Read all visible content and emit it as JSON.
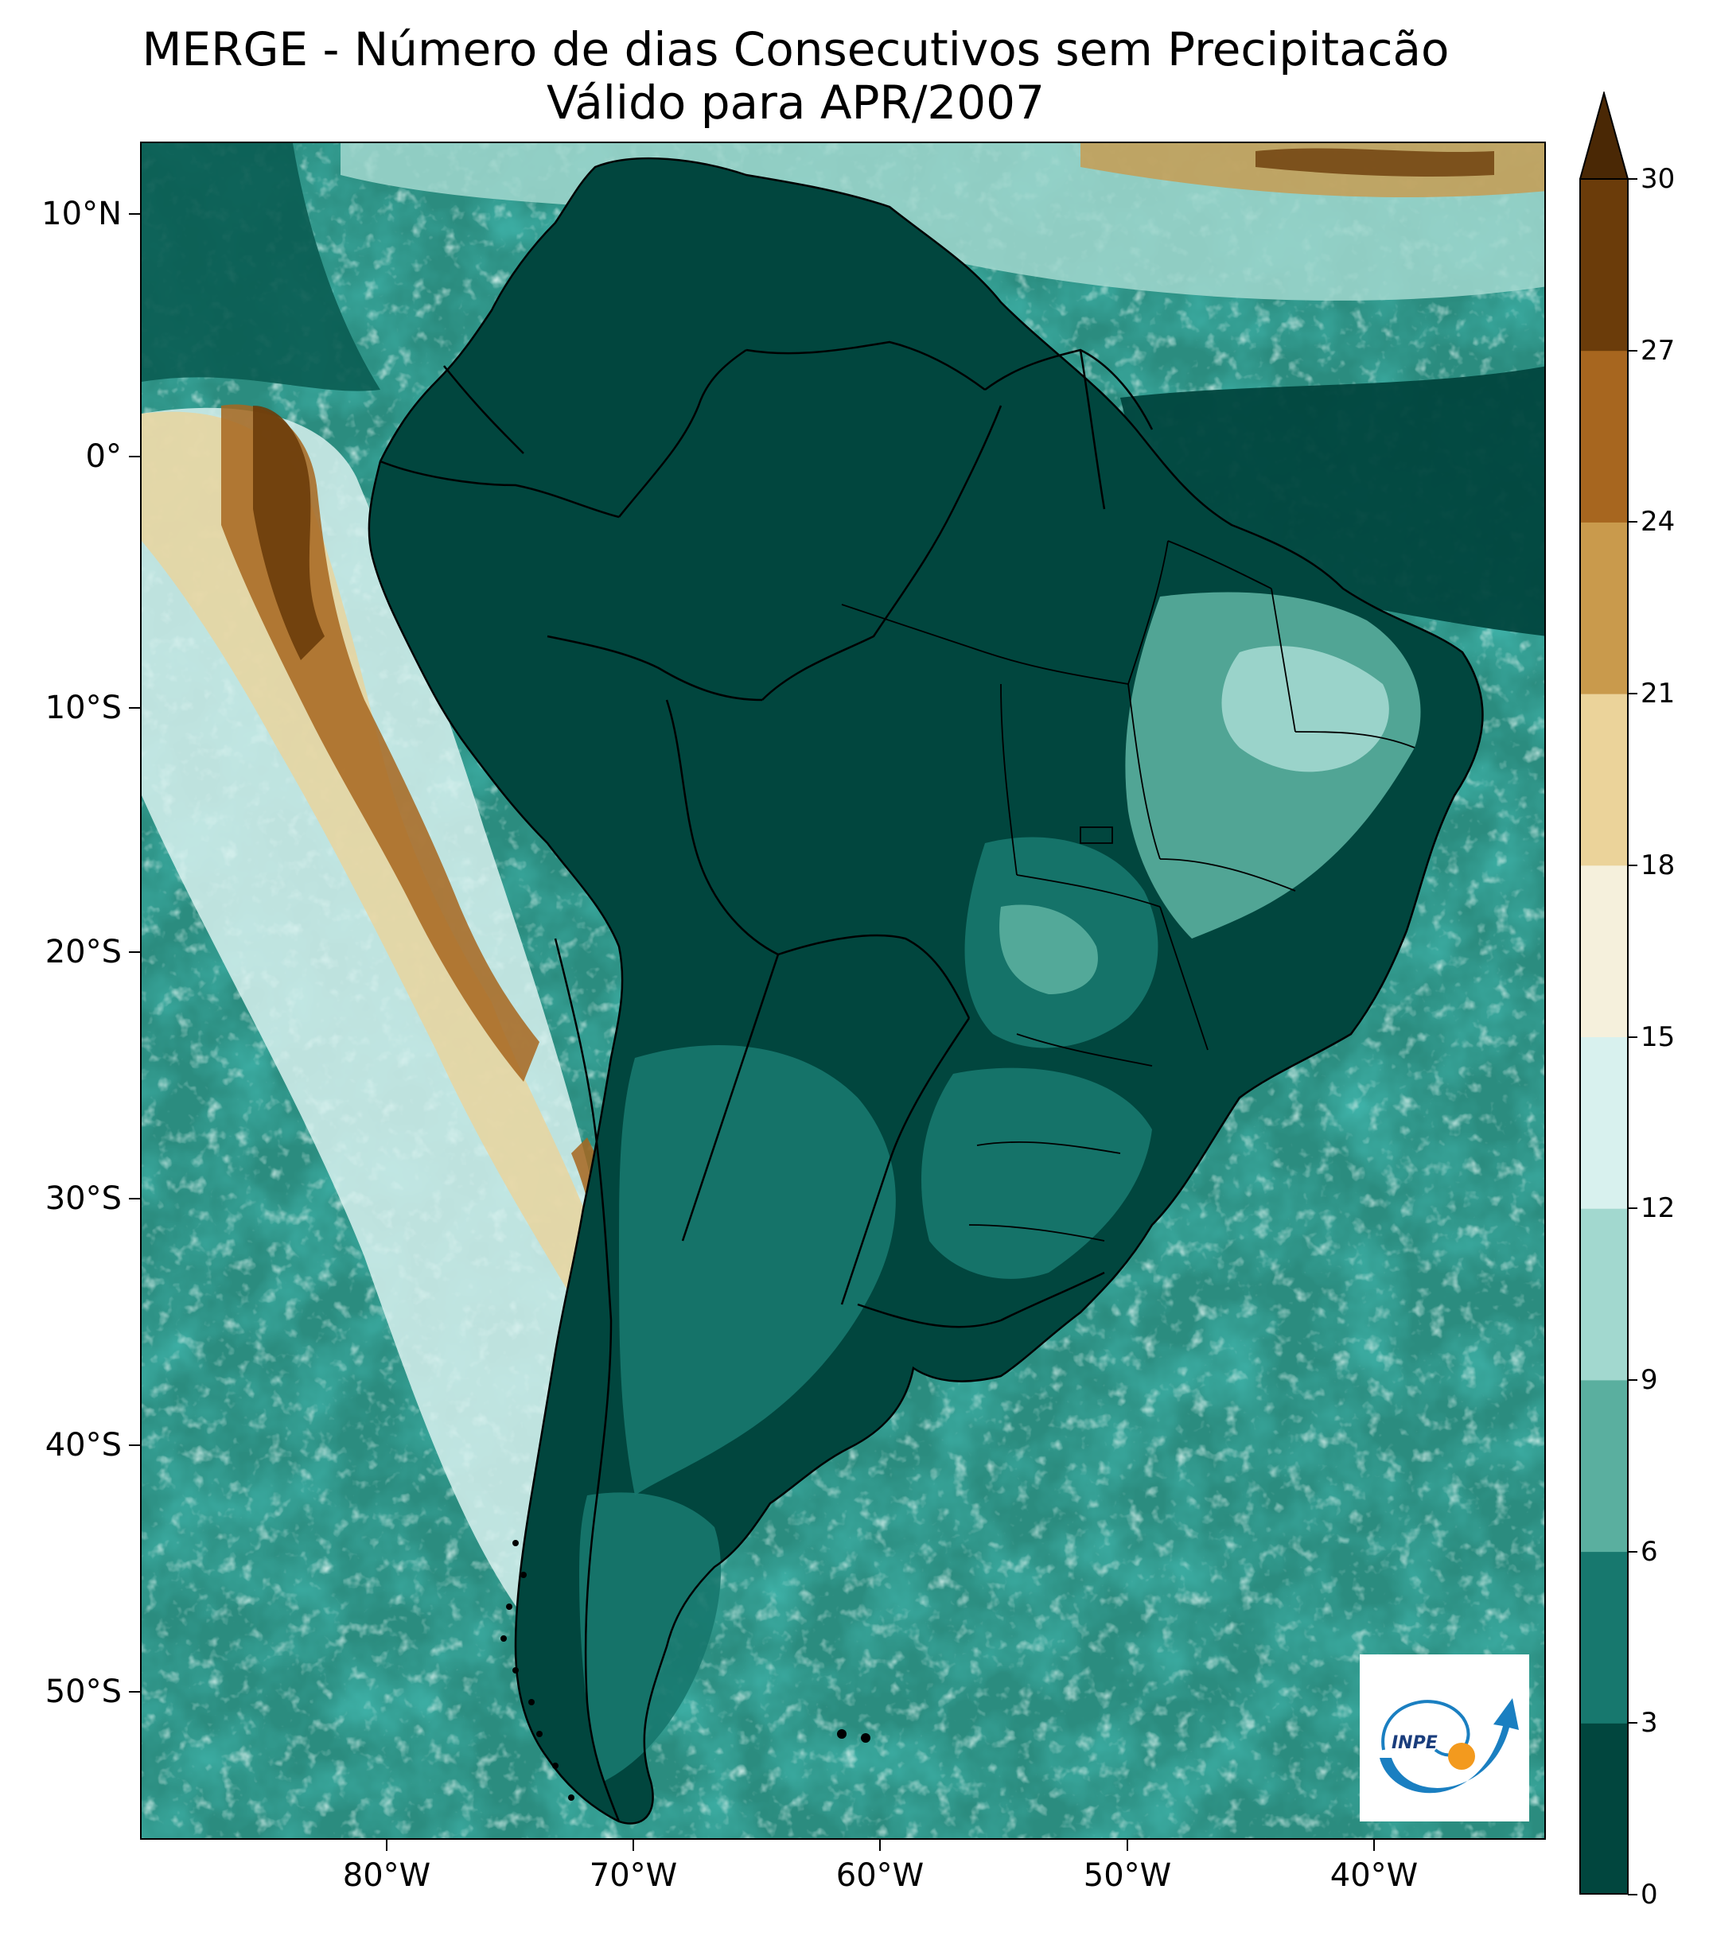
{
  "title": {
    "line1": "MERGE - Número de dias Consecutivos sem Precipitacão",
    "line2": "Válido para APR/2007"
  },
  "axes": {
    "lat_labels": [
      "10°N",
      "0°",
      "10°S",
      "20°S",
      "30°S",
      "40°S",
      "50°S"
    ],
    "lon_labels": [
      "80°W",
      "70°W",
      "60°W",
      "50°W",
      "40°W"
    ]
  },
  "colorbar": {
    "tick_labels": [
      "0",
      "3",
      "6",
      "9",
      "12",
      "15",
      "18",
      "21",
      "24",
      "27",
      "30"
    ],
    "colors": [
      "#01463e",
      "#17786e",
      "#5aaf9f",
      "#a2d8cf",
      "#d8f1ee",
      "#f5f0dc",
      "#ebd39a",
      "#c99a4c",
      "#a7661f",
      "#6b3c0a",
      "#4a2805"
    ],
    "extend": "max"
  },
  "logo": {
    "text": "INPE",
    "colors": [
      "#1a7fc1",
      "#f39a1e"
    ]
  },
  "map": {
    "ocean_color": "#5aaf9f",
    "land_color": "#01463e",
    "boundary_color": "#000000"
  }
}
